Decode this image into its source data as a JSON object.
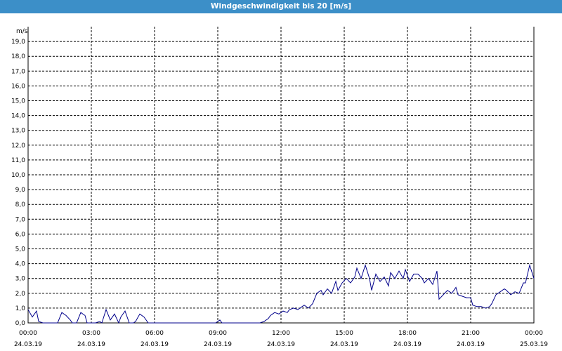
{
  "window": {
    "title": "Windgeschwindigkeit bis 20 [m/s]"
  },
  "colors": {
    "titlebar": "#3c8fc8",
    "line": "#00008b",
    "grid": "#000000"
  },
  "chart_data": {
    "type": "line",
    "title": "Windgeschwindigkeit bis 20 [m/s]",
    "ylabel": "m/s",
    "xlabel": "",
    "ylim": [
      0,
      20
    ],
    "xlim": [
      0,
      24
    ],
    "grid": true,
    "y_ticks": [
      "0,0",
      "1,0",
      "2,0",
      "3,0",
      "4,0",
      "5,0",
      "6,0",
      "7,0",
      "8,0",
      "9,0",
      "10,0",
      "11,0",
      "12,0",
      "13,0",
      "14,0",
      "15,0",
      "16,0",
      "17,0",
      "18,0",
      "19,0"
    ],
    "x_ticks": [
      {
        "time": "00:00",
        "date": "24.03.19"
      },
      {
        "time": "03:00",
        "date": "24.03.19"
      },
      {
        "time": "06:00",
        "date": "24.03.19"
      },
      {
        "time": "09:00",
        "date": "24.03.19"
      },
      {
        "time": "12:00",
        "date": "24.03.19"
      },
      {
        "time": "15:00",
        "date": "24.03.19"
      },
      {
        "time": "18:00",
        "date": "24.03.19"
      },
      {
        "time": "21:00",
        "date": "24.03.19"
      },
      {
        "time": "00:00",
        "date": "25.03.19"
      }
    ],
    "series": [
      {
        "x": [
          0.0,
          0.2,
          0.4,
          0.5,
          0.7,
          0.9,
          1.0,
          1.2,
          1.4,
          1.6,
          1.8,
          2.0,
          2.1,
          2.3,
          2.5,
          2.7,
          2.8,
          3.0,
          3.2,
          3.4,
          3.5,
          3.7,
          3.9,
          4.1,
          4.3,
          4.4,
          4.6,
          4.8,
          5.0,
          5.1,
          5.3,
          5.5,
          5.7,
          5.9,
          6.0,
          6.2,
          6.4,
          6.6,
          6.8,
          6.9,
          7.1,
          7.3,
          7.5,
          7.6,
          7.8,
          8.0,
          8.2,
          8.4,
          8.5,
          8.7,
          8.9,
          9.1,
          9.2,
          9.4,
          9.6,
          9.8,
          10.0,
          10.1,
          10.3,
          10.5,
          10.7,
          10.8,
          11.0,
          11.2,
          11.4,
          11.5,
          11.7,
          11.9,
          12.1,
          12.3,
          12.4,
          12.6,
          12.8,
          13.0,
          13.1,
          13.3,
          13.5,
          13.7,
          13.9,
          14.0,
          14.2,
          14.4,
          14.6,
          14.7,
          14.9,
          15.1,
          15.3,
          15.5,
          15.6,
          15.8,
          16.0,
          16.2,
          16.3,
          16.5,
          16.7,
          16.9,
          17.1,
          17.2,
          17.4,
          17.6,
          17.8,
          17.9,
          18.1,
          18.3,
          18.5,
          18.7,
          18.8,
          19.0,
          19.2,
          19.4,
          19.5,
          19.7,
          19.9,
          20.1,
          20.3,
          20.4,
          20.6,
          20.8,
          21.0,
          21.1,
          21.3,
          21.5,
          21.7,
          21.9,
          22.0,
          22.2,
          22.4,
          22.6,
          22.7,
          22.9,
          23.1,
          23.3,
          23.5,
          23.6,
          23.8,
          24.0
        ],
        "values": [
          0.9,
          0.4,
          0.8,
          0.1,
          0.0,
          0.0,
          0.0,
          0.0,
          0.0,
          0.7,
          0.5,
          0.2,
          0.0,
          0.0,
          0.7,
          0.5,
          0.0,
          0.0,
          0.0,
          0.1,
          0.0,
          0.9,
          0.2,
          0.6,
          0.0,
          0.4,
          0.8,
          0.0,
          0.0,
          0.1,
          0.6,
          0.4,
          0.0,
          0.0,
          0.0,
          0.0,
          0.0,
          0.0,
          0.0,
          0.0,
          0.0,
          0.0,
          0.0,
          0.0,
          0.0,
          0.0,
          0.0,
          0.0,
          0.0,
          0.0,
          0.0,
          0.2,
          0.0,
          0.0,
          0.0,
          0.0,
          0.0,
          0.0,
          0.0,
          0.0,
          0.0,
          0.0,
          0.0,
          0.1,
          0.3,
          0.5,
          0.7,
          0.6,
          0.8,
          0.7,
          0.9,
          1.0,
          0.9,
          1.1,
          1.2,
          1.0,
          1.3,
          2.0,
          2.2,
          1.9,
          2.3,
          2.0,
          2.8,
          2.2,
          2.7,
          3.0,
          2.7,
          3.1,
          3.7,
          3.0,
          3.9,
          3.0,
          2.2,
          3.3,
          2.8,
          3.1,
          2.5,
          3.4,
          3.0,
          3.5,
          3.0,
          3.6,
          2.8,
          3.3,
          3.3,
          3.0,
          2.7,
          3.0,
          2.6,
          3.5,
          1.6,
          1.9,
          2.2,
          2.0,
          2.4,
          1.9,
          1.8,
          1.7,
          1.7,
          1.2,
          1.1,
          1.1,
          1.0,
          1.1,
          1.3,
          1.9,
          2.1,
          2.3,
          2.2,
          1.9,
          2.1,
          2.0,
          2.7,
          2.7,
          3.9,
          3.0
        ]
      }
    ]
  }
}
